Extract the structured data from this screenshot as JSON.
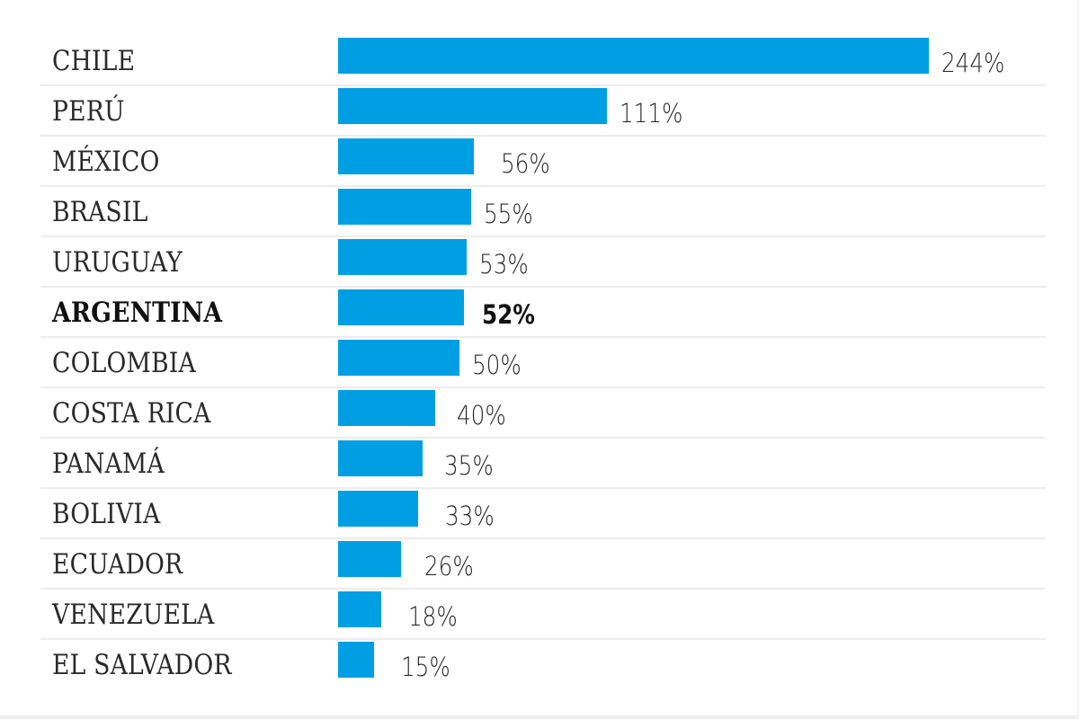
{
  "chart_data": {
    "type": "bar",
    "orientation": "horizontal",
    "title": "",
    "xlabel": "",
    "ylabel": "",
    "grid": false,
    "legend": null,
    "bar_color": "#009fe3",
    "highlight": "ARGENTINA",
    "categories": [
      "CHILE",
      "PERÚ",
      "MÉXICO",
      "BRASIL",
      "URUGUAY",
      "ARGENTINA",
      "COLOMBIA",
      "COSTA RICA",
      "PANAMÁ",
      "BOLIVIA",
      "ECUADOR",
      "VENEZUELA",
      "EL SALVADOR"
    ],
    "values": [
      244,
      111,
      56,
      55,
      53,
      52,
      50,
      40,
      35,
      33,
      26,
      18,
      15
    ],
    "value_labels": [
      "244%",
      "111%",
      "56%",
      "55%",
      "53%",
      "52%",
      "50%",
      "40%",
      "35%",
      "33%",
      "26%",
      "18%",
      "15%"
    ],
    "unit": "%"
  },
  "rows": [
    {
      "label": "CHILE",
      "value": "244%"
    },
    {
      "label": "PERÚ",
      "value": "111%"
    },
    {
      "label": "MÉXICO",
      "value": "56%"
    },
    {
      "label": "BRASIL",
      "value": "55%"
    },
    {
      "label": "URUGUAY",
      "value": "53%"
    },
    {
      "label": "ARGENTINA",
      "value": "52%"
    },
    {
      "label": "COLOMBIA",
      "value": "50%"
    },
    {
      "label": "COSTA RICA",
      "value": "40%"
    },
    {
      "label": "PANAMÁ",
      "value": "35%"
    },
    {
      "label": "BOLIVIA",
      "value": "33%"
    },
    {
      "label": "ECUADOR",
      "value": "26%"
    },
    {
      "label": "VENEZUELA",
      "value": "18%"
    },
    {
      "label": "EL SALVADOR",
      "value": "15%"
    }
  ]
}
